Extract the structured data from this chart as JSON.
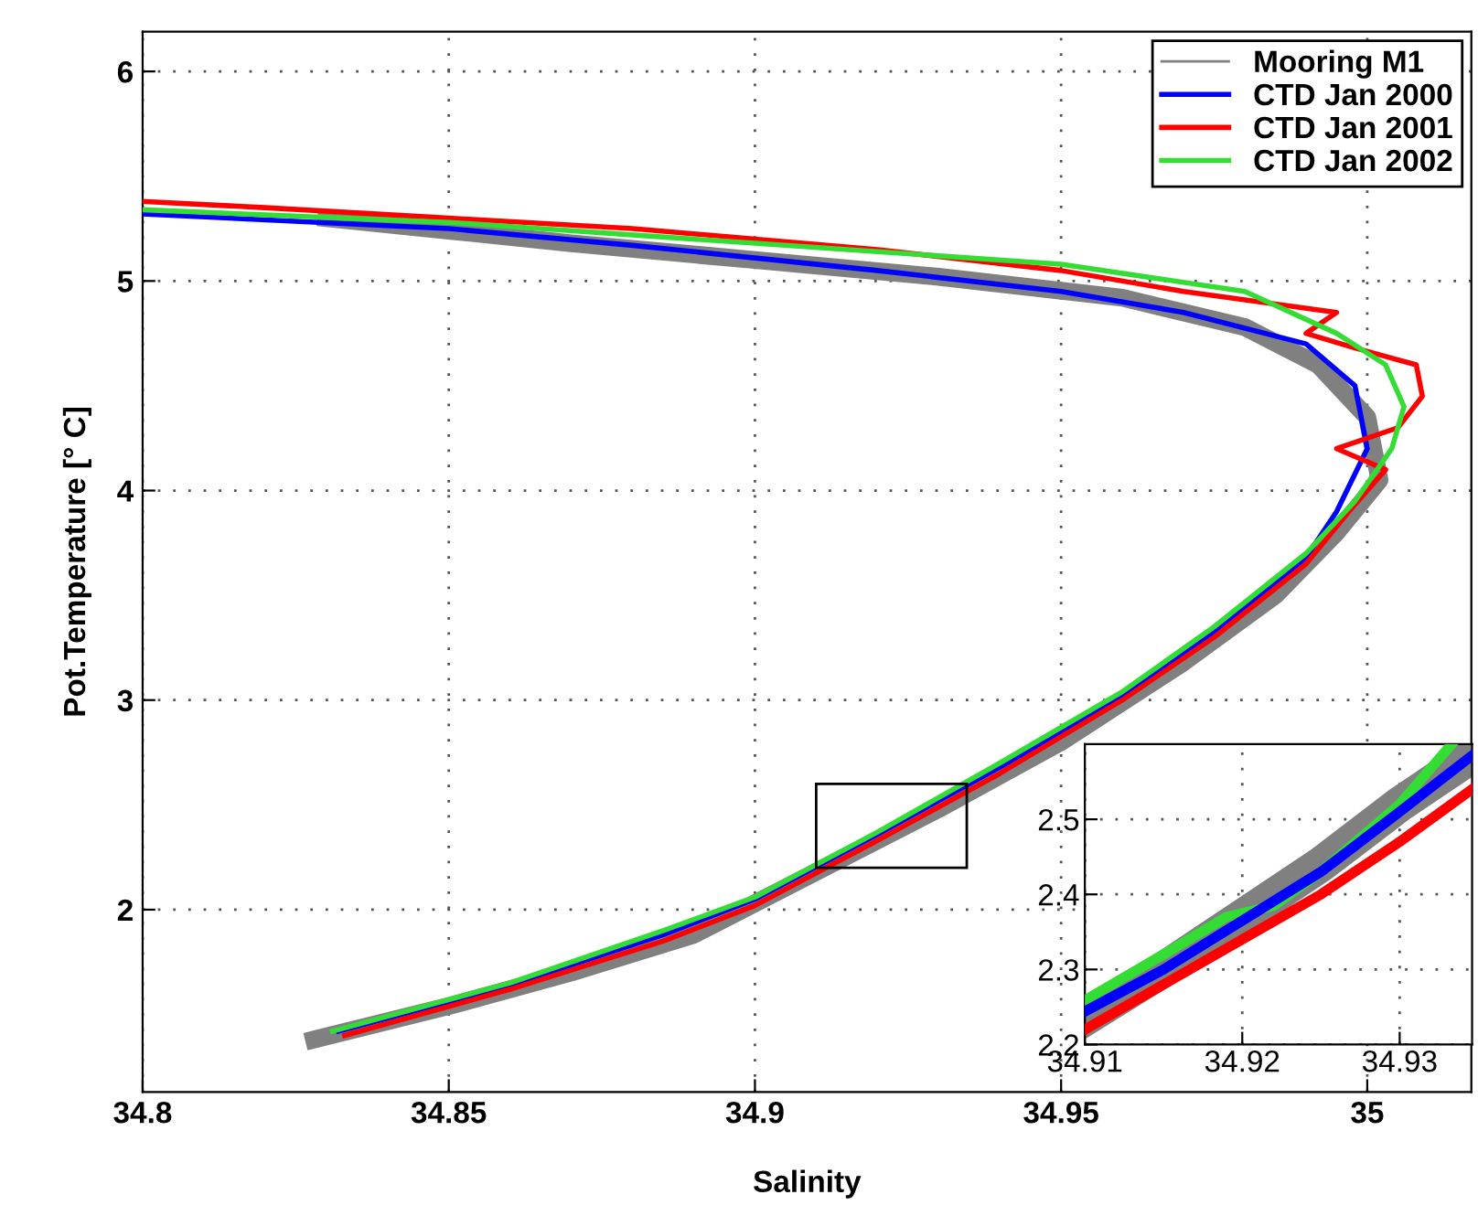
{
  "chart_data": [
    {
      "type": "line",
      "xlabel": "Salinity",
      "ylabel": "Pot.Temperature [° C]",
      "xlim": [
        34.8,
        35.017
      ],
      "ylim": [
        1.13,
        6.19
      ],
      "xticks": [
        34.8,
        34.85,
        34.9,
        34.95,
        35
      ],
      "yticks": [
        2,
        3,
        4,
        5,
        6
      ],
      "grid": true,
      "legend": "top right",
      "line_style": "solid",
      "marker": "none",
      "series": [
        {
          "name": "Mooring M1",
          "color": "#808080",
          "x": [
            34.828,
            34.85,
            34.87,
            34.89,
            34.91,
            34.93,
            34.95,
            34.97,
            34.985,
            34.995,
            35.002,
            35.0,
            34.992,
            34.98,
            34.96,
            34.93,
            34.9,
            34.87,
            34.85,
            34.83
          ],
          "values": [
            1.38,
            1.54,
            1.7,
            1.88,
            2.18,
            2.48,
            2.8,
            3.18,
            3.5,
            3.8,
            4.05,
            4.35,
            4.6,
            4.78,
            4.92,
            5.02,
            5.1,
            5.18,
            5.24,
            5.3
          ]
        },
        {
          "name": "CTD Jan 2000",
          "color": "#0000ff",
          "x": [
            34.832,
            34.86,
            34.885,
            34.9,
            34.92,
            34.94,
            34.96,
            34.975,
            34.99,
            34.995,
            35.0,
            34.998,
            34.99,
            34.97,
            34.95,
            34.92,
            34.88,
            34.85,
            34.8
          ],
          "values": [
            1.42,
            1.64,
            1.88,
            2.05,
            2.36,
            2.68,
            3.02,
            3.32,
            3.68,
            3.9,
            4.2,
            4.5,
            4.7,
            4.85,
            4.95,
            5.05,
            5.17,
            5.25,
            5.32
          ]
        },
        {
          "name": "CTD Jan 2001",
          "color": "#ff0000",
          "x": [
            34.833,
            34.86,
            34.885,
            34.9,
            34.92,
            34.94,
            34.96,
            34.975,
            34.99,
            34.997,
            35.003,
            34.995,
            35.005,
            35.009,
            35.008,
            34.998,
            34.99,
            34.995,
            34.97,
            34.95,
            34.92,
            34.88,
            34.85,
            34.82,
            34.8
          ],
          "values": [
            1.4,
            1.62,
            1.85,
            2.02,
            2.33,
            2.65,
            3.0,
            3.3,
            3.65,
            3.9,
            4.1,
            4.2,
            4.3,
            4.45,
            4.6,
            4.68,
            4.75,
            4.85,
            4.95,
            5.05,
            5.15,
            5.25,
            5.3,
            5.35,
            5.38
          ]
        },
        {
          "name": "CTD Jan 2002",
          "color": "#33dd33",
          "x": [
            34.831,
            34.86,
            34.885,
            34.9,
            34.92,
            34.94,
            34.96,
            34.975,
            34.99,
            34.998,
            35.004,
            35.006,
            35.003,
            34.995,
            34.98,
            34.95,
            34.9,
            34.85,
            34.8
          ],
          "values": [
            1.42,
            1.65,
            1.9,
            2.06,
            2.37,
            2.7,
            3.04,
            3.35,
            3.7,
            3.95,
            4.2,
            4.4,
            4.6,
            4.75,
            4.95,
            5.08,
            5.18,
            5.28,
            5.34
          ]
        }
      ]
    },
    {
      "type": "line",
      "xlim": [
        34.91,
        34.9346
      ],
      "ylim": [
        2.2,
        2.6
      ],
      "xticks": [
        34.91,
        34.92,
        34.93
      ],
      "yticks": [
        2.2,
        2.3,
        2.4,
        2.5
      ],
      "grid": true,
      "line_style": "solid",
      "marker": "none",
      "series": [
        {
          "color": "#808080",
          "x": [
            34.91,
            34.915,
            34.92,
            34.925,
            34.93,
            34.9346
          ],
          "values": [
            2.235,
            2.3,
            2.37,
            2.44,
            2.52,
            2.585
          ]
        },
        {
          "color": "#33dd33",
          "x": [
            34.91,
            34.915,
            34.919,
            34.922,
            34.925,
            34.93,
            34.9333
          ],
          "values": [
            2.259,
            2.32,
            2.37,
            2.385,
            2.43,
            2.52,
            2.6
          ]
        },
        {
          "color": "#0000ff",
          "x": [
            34.91,
            34.915,
            34.92,
            34.925,
            34.93,
            34.9346
          ],
          "values": [
            2.244,
            2.3,
            2.365,
            2.43,
            2.51,
            2.585
          ]
        },
        {
          "color": "#ff0000",
          "x": [
            34.91,
            34.915,
            34.92,
            34.925,
            34.93,
            34.9346
          ],
          "values": [
            2.22,
            2.28,
            2.34,
            2.4,
            2.47,
            2.54
          ]
        }
      ]
    }
  ]
}
